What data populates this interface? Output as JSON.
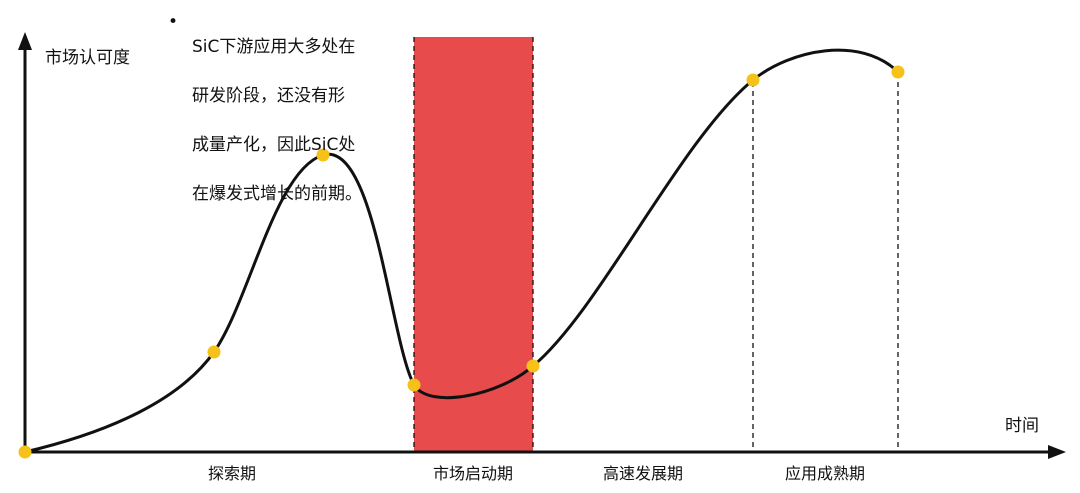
{
  "axes": {
    "y_label": "市场认可度",
    "x_label": "时间"
  },
  "annotation": {
    "bullet": "•",
    "lines": [
      "SiC下游应用大多处在",
      "研发阶段，还没有形",
      "成量产化，因此SiC处",
      "在爆发式增长的前期。"
    ]
  },
  "phases": [
    {
      "label": "探索期"
    },
    {
      "label": "市场启动期",
      "highlighted": true
    },
    {
      "label": "高速发展期"
    },
    {
      "label": "应用成熟期"
    }
  ],
  "colors": {
    "curve": "#111111",
    "highlight_band": "#e84b4b",
    "marker": "#f6c21a",
    "axis": "#111111"
  }
}
